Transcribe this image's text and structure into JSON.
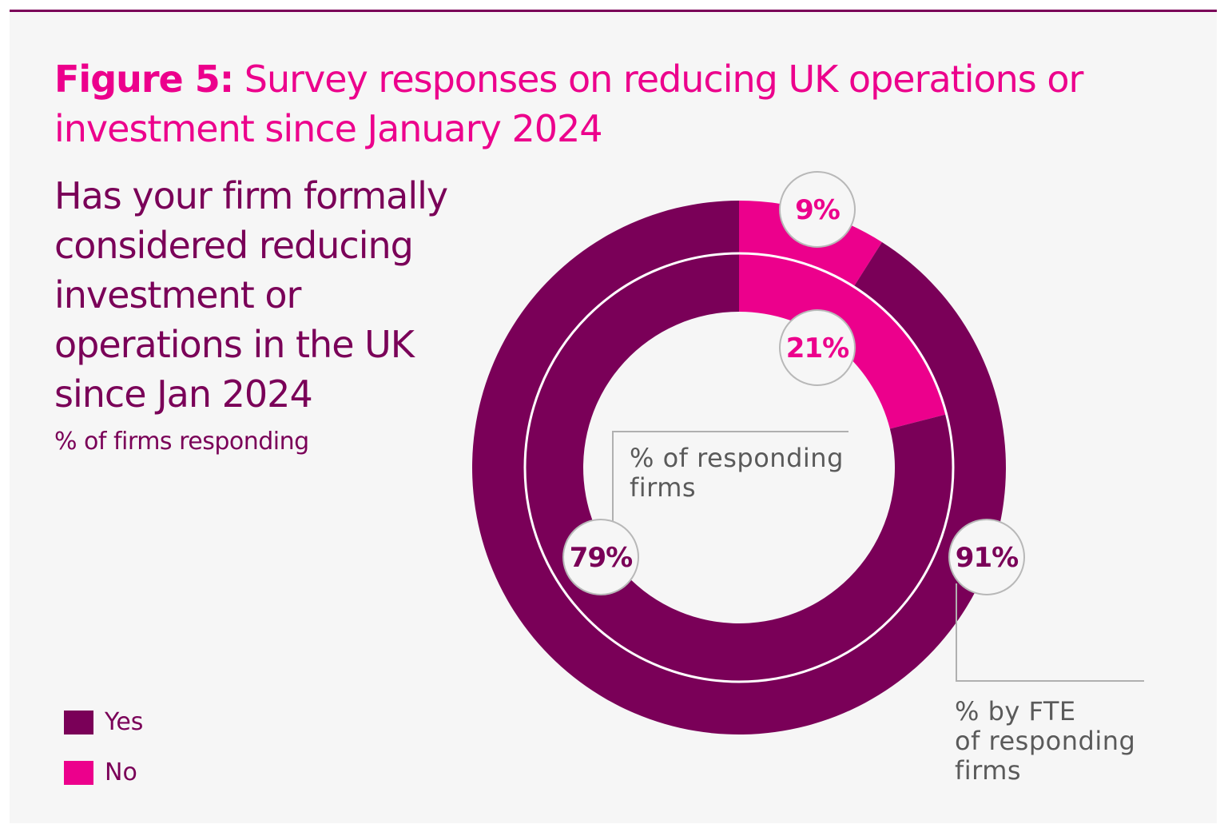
{
  "title": {
    "prefix": "Figure 5:",
    "text": "Survey responses on reducing UK operations or investment since January 2024"
  },
  "question": "Has your firm formally considered reducing investment or operations  in the UK since Jan 2024",
  "subtitle": "% of firms responding",
  "colors": {
    "yes": "#7a0058",
    "no": "#ec008c",
    "label_border": "#b8b8b8",
    "connector": "#b0b0b0"
  },
  "chart_data": {
    "type": "pie",
    "subtype": "nested-donut",
    "title": "Survey responses on reducing UK operations or investment since January 2024",
    "legend": [
      {
        "label": "Yes",
        "color": "#7a0058"
      },
      {
        "label": "No",
        "color": "#ec008c"
      }
    ],
    "legend_position": "bottom-left",
    "rings": [
      {
        "name": "% of responding firms",
        "position": "inner",
        "values": {
          "Yes": 79,
          "No": 21
        },
        "labels": {
          "Yes": "79%",
          "No": "21%"
        }
      },
      {
        "name": "% by FTE of responding firms",
        "position": "outer",
        "values": {
          "Yes": 91,
          "No": 9
        },
        "labels": {
          "Yes": "91%",
          "No": "9%"
        }
      }
    ]
  },
  "annotations": {
    "inner": "% of responding firms",
    "outer_line1": "% by FTE",
    "outer_line2": "of responding",
    "outer_line3": "firms"
  }
}
